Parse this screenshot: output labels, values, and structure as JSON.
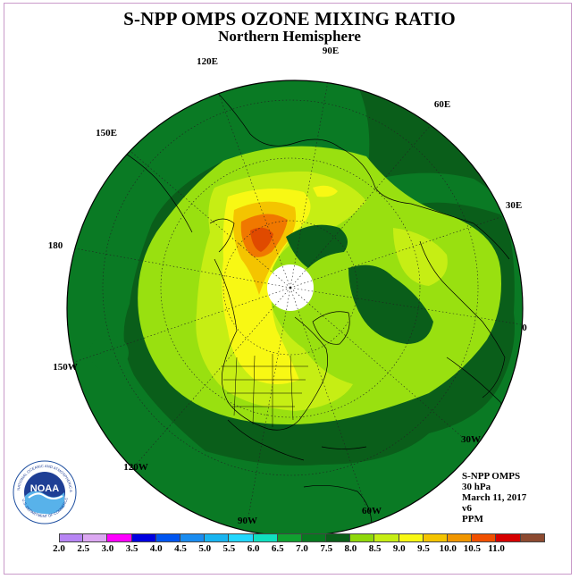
{
  "title": "S-NPP OMPS OZONE MIXING RATIO",
  "subtitle": "Northern Hemisphere",
  "longitude_labels": [
    "90E",
    "60E",
    "30E",
    "0",
    "30W",
    "60W",
    "90W",
    "120W",
    "150W",
    "180",
    "150E",
    "120E"
  ],
  "info": {
    "instrument": "S-NPP OMPS",
    "level": "30 hPa",
    "date": "March 11, 2017",
    "version": "v6",
    "units": "PPM"
  },
  "colorbar": {
    "ticks": [
      "2.0",
      "2.5",
      "3.0",
      "3.5",
      "4.0",
      "4.5",
      "5.0",
      "5.5",
      "6.0",
      "6.5",
      "7.0",
      "7.5",
      "8.0",
      "8.5",
      "9.0",
      "9.5",
      "10.0",
      "10.5",
      "11.0"
    ],
    "colors": [
      "#b785f4",
      "#dca8f2",
      "#ff00ff",
      "#0000e0",
      "#0055f0",
      "#1a8cf0",
      "#19b4f0",
      "#22d7ff",
      "#10e0c0",
      "#10a030",
      "#087820",
      "#0a5e1a",
      "#8fd80a",
      "#c6ee14",
      "#f8f814",
      "#f4c400",
      "#f09600",
      "#f05000",
      "#d60000",
      "#8c4a30"
    ]
  },
  "map_colors": {
    "darkgreen": "#0a5e1a",
    "green": "#0a7a24",
    "lightgreen": "#99e010",
    "yellowgreen": "#c6ee14",
    "yellow": "#f8f814",
    "gold": "#f4c400",
    "orange": "#f07800",
    "darkorange": "#e04a00",
    "polar_hole": "#ffffff"
  },
  "logo": {
    "name": "NOAA",
    "ring_text": "NATIONAL OCEANIC AND ATMOSPHERIC ADMINISTRATION",
    "bottom_text": "U.S. DEPARTMENT OF COMMERCE"
  }
}
